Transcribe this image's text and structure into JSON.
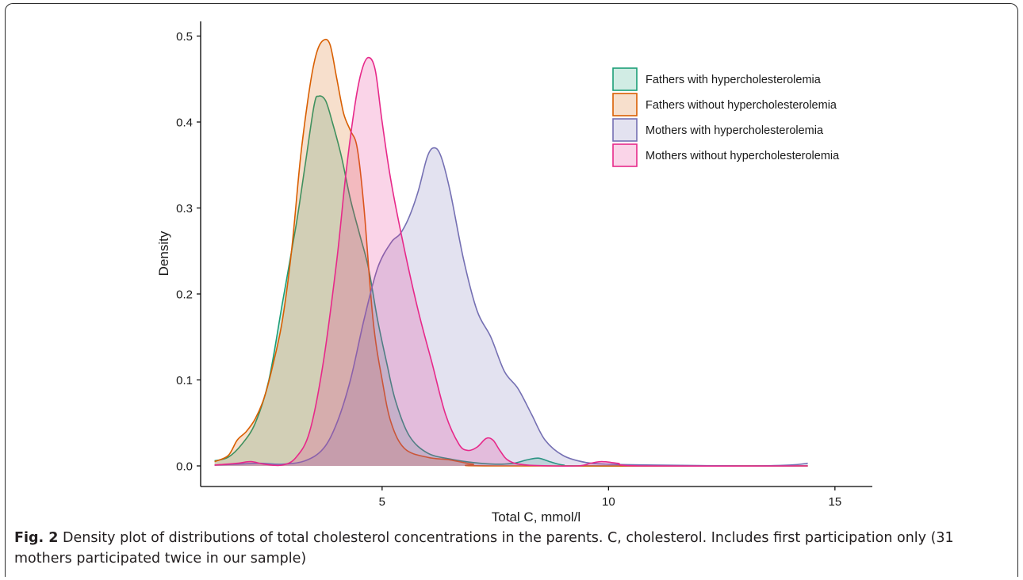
{
  "chart_data": {
    "type": "area",
    "xlabel": "Total C, mmol/l",
    "ylabel": "Density",
    "xlim": [
      1,
      15.5
    ],
    "ylim": [
      0,
      0.5
    ],
    "x_ticks": [
      5,
      10,
      15
    ],
    "y_ticks": [
      0.0,
      0.1,
      0.2,
      0.3,
      0.4,
      0.5
    ],
    "y_tick_labels": [
      "0.0",
      "0.1",
      "0.2",
      "0.3",
      "0.4",
      "0.5"
    ],
    "legend_position": "top-right",
    "grid": false,
    "series": [
      {
        "name": "Fathers with hypercholesterolemia",
        "color": "#1b9e77",
        "fill": "#1b9e77",
        "points": [
          [
            1.3,
            0.006
          ],
          [
            1.6,
            0.01
          ],
          [
            1.9,
            0.025
          ],
          [
            2.2,
            0.05
          ],
          [
            2.5,
            0.1
          ],
          [
            2.8,
            0.19
          ],
          [
            3.1,
            0.28
          ],
          [
            3.3,
            0.35
          ],
          [
            3.5,
            0.42
          ],
          [
            3.6,
            0.43
          ],
          [
            3.75,
            0.425
          ],
          [
            3.9,
            0.4
          ],
          [
            4.1,
            0.36
          ],
          [
            4.3,
            0.31
          ],
          [
            4.5,
            0.27
          ],
          [
            4.7,
            0.23
          ],
          [
            4.9,
            0.17
          ],
          [
            5.1,
            0.12
          ],
          [
            5.3,
            0.075
          ],
          [
            5.6,
            0.035
          ],
          [
            6.0,
            0.015
          ],
          [
            6.5,
            0.008
          ],
          [
            7.0,
            0.004
          ],
          [
            7.5,
            0.002
          ],
          [
            7.9,
            0.003
          ],
          [
            8.2,
            0.007
          ],
          [
            8.45,
            0.009
          ],
          [
            8.7,
            0.005
          ],
          [
            9.0,
            0.001
          ],
          [
            9.5,
            0.0
          ],
          [
            14.4,
            0.0
          ]
        ]
      },
      {
        "name": "Fathers without hypercholesterolemia",
        "color": "#d95f02",
        "fill": "#d95f02",
        "points": [
          [
            1.3,
            0.005
          ],
          [
            1.6,
            0.012
          ],
          [
            1.8,
            0.03
          ],
          [
            2.0,
            0.04
          ],
          [
            2.2,
            0.055
          ],
          [
            2.4,
            0.08
          ],
          [
            2.6,
            0.12
          ],
          [
            2.8,
            0.17
          ],
          [
            3.0,
            0.25
          ],
          [
            3.2,
            0.36
          ],
          [
            3.4,
            0.44
          ],
          [
            3.55,
            0.48
          ],
          [
            3.7,
            0.495
          ],
          [
            3.85,
            0.49
          ],
          [
            4.0,
            0.45
          ],
          [
            4.15,
            0.41
          ],
          [
            4.3,
            0.39
          ],
          [
            4.45,
            0.37
          ],
          [
            4.6,
            0.3
          ],
          [
            4.8,
            0.17
          ],
          [
            5.0,
            0.1
          ],
          [
            5.2,
            0.05
          ],
          [
            5.5,
            0.02
          ],
          [
            6.0,
            0.01
          ],
          [
            6.5,
            0.007
          ],
          [
            7.0,
            0.002
          ],
          [
            7.5,
            0.0
          ],
          [
            14.4,
            0.0
          ]
        ]
      },
      {
        "name": "Mothers with hypercholesterolemia",
        "color": "#7570b3",
        "fill": "#7570b3",
        "points": [
          [
            1.3,
            0.001
          ],
          [
            1.8,
            0.002
          ],
          [
            2.3,
            0.003
          ],
          [
            2.8,
            0.002
          ],
          [
            3.3,
            0.006
          ],
          [
            3.7,
            0.02
          ],
          [
            4.0,
            0.05
          ],
          [
            4.3,
            0.1
          ],
          [
            4.6,
            0.17
          ],
          [
            4.9,
            0.23
          ],
          [
            5.2,
            0.26
          ],
          [
            5.4,
            0.27
          ],
          [
            5.6,
            0.29
          ],
          [
            5.8,
            0.32
          ],
          [
            6.0,
            0.36
          ],
          [
            6.15,
            0.37
          ],
          [
            6.3,
            0.36
          ],
          [
            6.5,
            0.32
          ],
          [
            6.8,
            0.24
          ],
          [
            7.1,
            0.18
          ],
          [
            7.4,
            0.15
          ],
          [
            7.7,
            0.11
          ],
          [
            8.0,
            0.09
          ],
          [
            8.3,
            0.06
          ],
          [
            8.6,
            0.03
          ],
          [
            9.0,
            0.012
          ],
          [
            9.5,
            0.004
          ],
          [
            10.0,
            0.002
          ],
          [
            11.0,
            0.001
          ],
          [
            13.0,
            0.0
          ],
          [
            14.0,
            0.001
          ],
          [
            14.4,
            0.003
          ]
        ]
      },
      {
        "name": "Mothers without hypercholesterolemia",
        "color": "#e7298a",
        "fill": "#e7298a",
        "points": [
          [
            1.3,
            0.001
          ],
          [
            1.8,
            0.003
          ],
          [
            2.1,
            0.005
          ],
          [
            2.4,
            0.002
          ],
          [
            2.8,
            0.001
          ],
          [
            3.1,
            0.01
          ],
          [
            3.4,
            0.04
          ],
          [
            3.7,
            0.12
          ],
          [
            4.0,
            0.24
          ],
          [
            4.2,
            0.34
          ],
          [
            4.4,
            0.42
          ],
          [
            4.55,
            0.46
          ],
          [
            4.7,
            0.475
          ],
          [
            4.85,
            0.46
          ],
          [
            5.0,
            0.4
          ],
          [
            5.2,
            0.33
          ],
          [
            5.5,
            0.25
          ],
          [
            5.8,
            0.18
          ],
          [
            6.1,
            0.12
          ],
          [
            6.4,
            0.06
          ],
          [
            6.7,
            0.025
          ],
          [
            6.9,
            0.018
          ],
          [
            7.1,
            0.022
          ],
          [
            7.3,
            0.032
          ],
          [
            7.45,
            0.03
          ],
          [
            7.6,
            0.018
          ],
          [
            7.8,
            0.006
          ],
          [
            8.2,
            0.001
          ],
          [
            9.3,
            0.0
          ],
          [
            9.6,
            0.003
          ],
          [
            9.85,
            0.005
          ],
          [
            10.2,
            0.003
          ],
          [
            10.7,
            0.0
          ],
          [
            14.4,
            0.0
          ]
        ]
      }
    ]
  },
  "caption": {
    "label": "Fig. 2",
    "text": "Density plot of distributions of total cholesterol concentrations in the parents. C, cholesterol. Includes first participation only (31 mothers participated twice in our sample)"
  }
}
